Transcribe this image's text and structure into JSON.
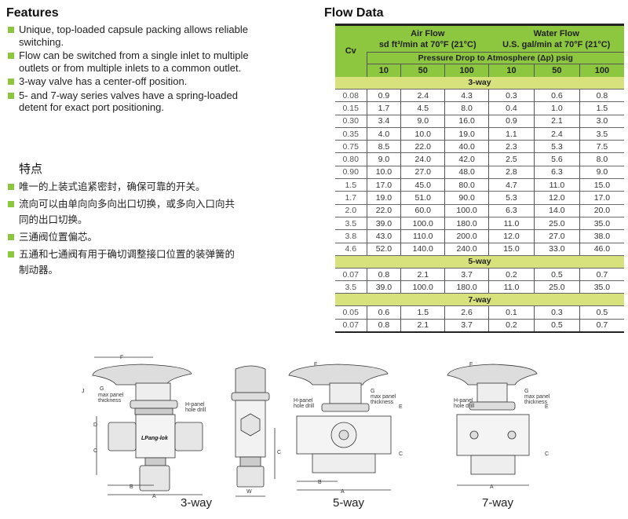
{
  "features": {
    "title": "Features",
    "items": [
      "Unique, top-loaded capsule packing allows reliable switching.",
      "Flow can be switched from a single inlet to multiple outlets or from multiple inlets to a common outlet.",
      "3-way valve has a center-off position.",
      "5- and 7-way series valves have a spring-loaded detent for exact port positioning."
    ]
  },
  "features_cn": {
    "title": "特点",
    "items": [
      "唯一的上装式追紧密封，确保可靠的开关。",
      "流向可以由单向向多向出口切换，或多向入口向共同的出口切换。",
      "三通阀位置偏芯。",
      "五通和七通阀有用于确切调整接口位置的装弹簧的制动器。"
    ]
  },
  "flow": {
    "title": "Flow Data",
    "cv_label": "Cv",
    "air_label": "Air Flow",
    "air_unit": "sd ft³/min at 70°F (21°C)",
    "water_label": "Water Flow",
    "water_unit": "U.S. gal/min at 70°F (21°C)",
    "pressure_label": "Pressure Drop to Atmosphere (Δp) psig",
    "pressures": [
      "10",
      "50",
      "100",
      "10",
      "50",
      "100"
    ],
    "sections": [
      {
        "name": "3-way",
        "rows": [
          [
            "0.08",
            "0.9",
            "2.4",
            "4.3",
            "0.3",
            "0.6",
            "0.8"
          ],
          [
            "0.15",
            "1.7",
            "4.5",
            "8.0",
            "0.4",
            "1.0",
            "1.5"
          ],
          [
            "0.30",
            "3.4",
            "9.0",
            "16.0",
            "0.9",
            "2.1",
            "3.0"
          ],
          [
            "0.35",
            "4.0",
            "10.0",
            "19.0",
            "1.1",
            "2.4",
            "3.5"
          ],
          [
            "0.75",
            "8.5",
            "22.0",
            "40.0",
            "2.3",
            "5.3",
            "7.5"
          ],
          [
            "0.80",
            "9.0",
            "24.0",
            "42.0",
            "2.5",
            "5.6",
            "8.0"
          ],
          [
            "0.90",
            "10.0",
            "27.0",
            "48.0",
            "2.8",
            "6.3",
            "9.0"
          ],
          [
            "1.5",
            "17.0",
            "45.0",
            "80.0",
            "4.7",
            "11.0",
            "15.0"
          ],
          [
            "1.7",
            "19.0",
            "51.0",
            "90.0",
            "5.3",
            "12.0",
            "17.0"
          ],
          [
            "2.0",
            "22.0",
            "60.0",
            "100.0",
            "6.3",
            "14.0",
            "20.0"
          ],
          [
            "3.5",
            "39.0",
            "100.0",
            "180.0",
            "11.0",
            "25.0",
            "35.0"
          ],
          [
            "3.8",
            "43.0",
            "110.0",
            "200.0",
            "12.0",
            "27.0",
            "38.0"
          ],
          [
            "4.6",
            "52.0",
            "140.0",
            "240.0",
            "15.0",
            "33.0",
            "46.0"
          ]
        ]
      },
      {
        "name": "5-way",
        "rows": [
          [
            "0.07",
            "0.8",
            "2.1",
            "3.7",
            "0.2",
            "0.5",
            "0.7"
          ],
          [
            "3.5",
            "39.0",
            "100.0",
            "180.0",
            "11.0",
            "25.0",
            "35.0"
          ]
        ]
      },
      {
        "name": "7-way",
        "rows": [
          [
            "0.05",
            "0.6",
            "1.5",
            "2.6",
            "0.1",
            "0.3",
            "0.5"
          ],
          [
            "0.07",
            "0.8",
            "2.1",
            "3.7",
            "0.2",
            "0.5",
            "0.7"
          ]
        ]
      }
    ]
  },
  "drawings": {
    "captions": [
      "3-way",
      "5-way",
      "7-way"
    ],
    "labels": {
      "F": "F",
      "J": "J",
      "G": "G",
      "max_panel": "max panel",
      "thickness": "thickness",
      "h_panel": "H-panel",
      "hole_drill": "hole drill",
      "D": "D",
      "C": "C",
      "B": "B",
      "A": "A",
      "W": "W",
      "E": "E"
    },
    "logo": "LPang-lok"
  },
  "colors": {
    "header_green": "#8dc63f",
    "section_green": "#d7e27c",
    "bullet": "#8dc63f"
  }
}
